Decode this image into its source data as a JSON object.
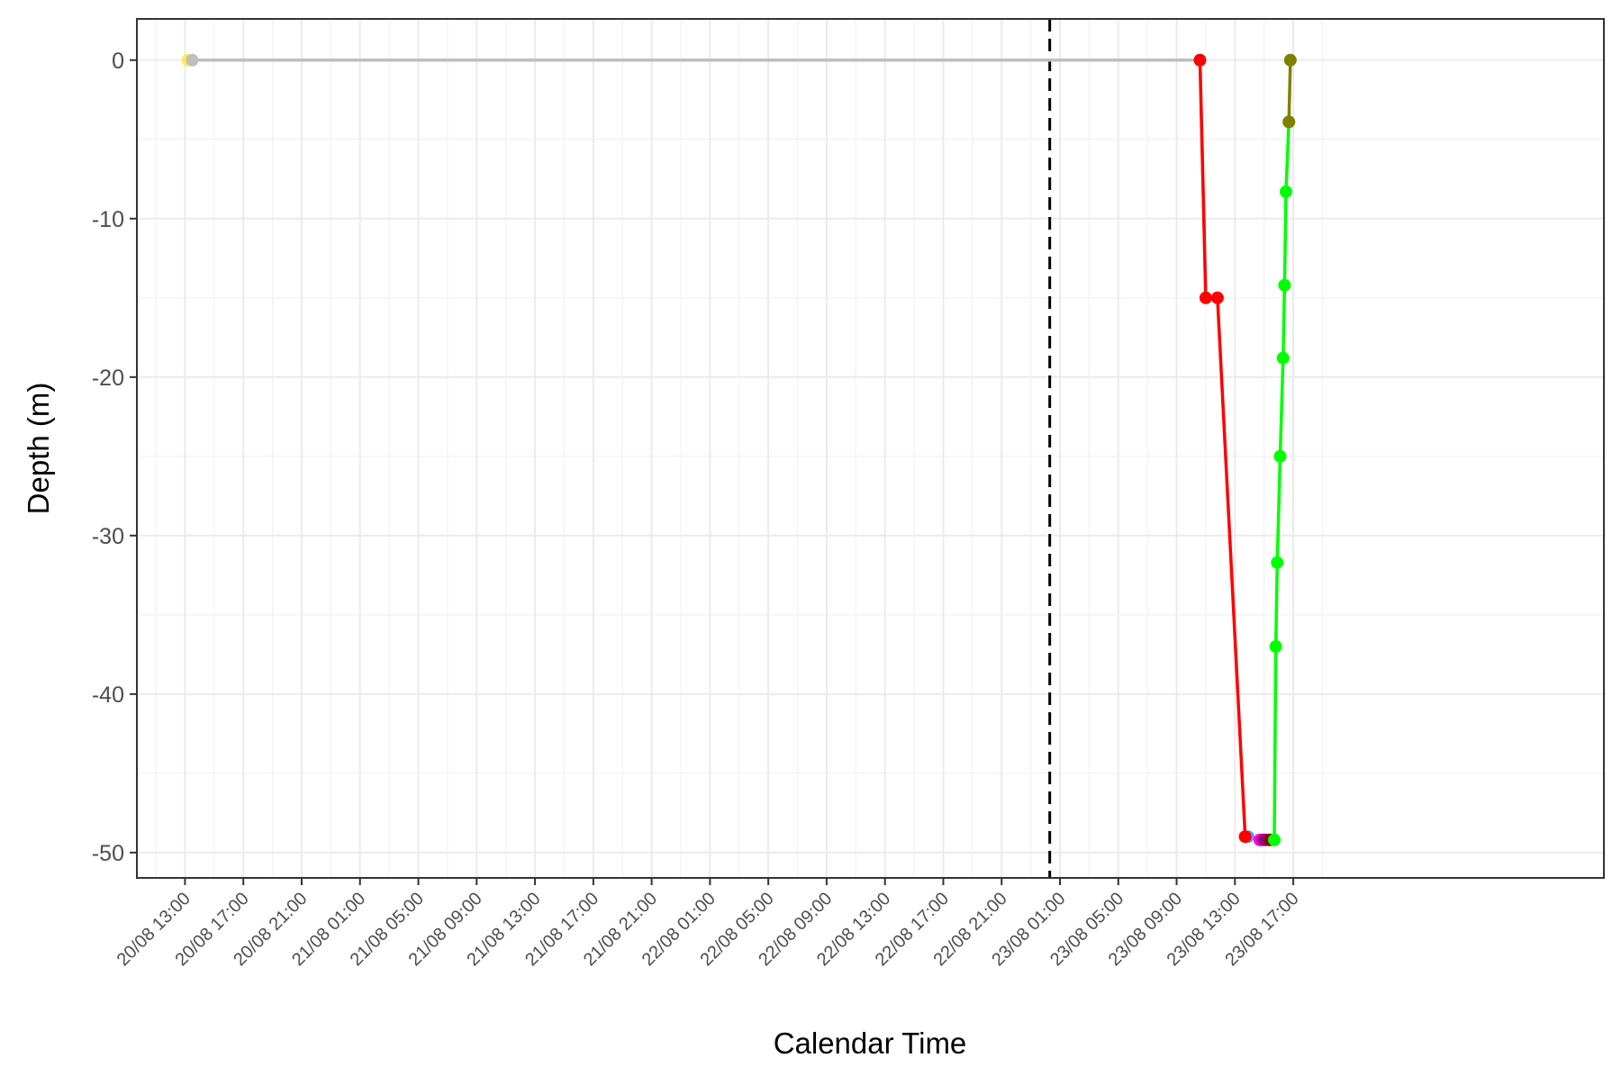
{
  "chart_data": {
    "type": "line",
    "xlabel": "Calendar Time",
    "ylabel": "Depth (m)",
    "x_unit": "hours since 20/08 13:00 (tick labels show dd/mm HH:MM)",
    "xlim": [
      -3.3,
      97.3
    ],
    "ylim": [
      -51.6,
      2.6
    ],
    "x_tick_labels": [
      "20/08 13:00",
      "20/08 17:00",
      "20/08 21:00",
      "21/08 01:00",
      "21/08 05:00",
      "21/08 09:00",
      "21/08 13:00",
      "21/08 17:00",
      "21/08 21:00",
      "22/08 01:00",
      "22/08 05:00",
      "22/08 09:00",
      "22/08 13:00",
      "22/08 17:00",
      "22/08 21:00",
      "23/08 01:00",
      "23/08 05:00",
      "23/08 09:00",
      "23/08 13:00",
      "23/08 17:00"
    ],
    "x_tick_values": [
      0,
      4,
      8,
      12,
      16,
      20,
      24,
      28,
      32,
      36,
      40,
      44,
      48,
      52,
      56,
      60,
      64,
      68,
      72,
      76
    ],
    "y_ticks": [
      0,
      -10,
      -20,
      -30,
      -40,
      -50
    ],
    "grid": true,
    "legend": "none",
    "vline": {
      "x": 59.3,
      "style": "dashed",
      "color": "#000000"
    },
    "series": [
      {
        "color": "#bebebe",
        "points": [
          [
            0.5,
            0
          ],
          [
            69.6,
            0
          ],
          [
            70.0,
            -15
          ]
        ]
      },
      {
        "color": "#ff0000",
        "points": [
          [
            69.6,
            0
          ],
          [
            70.0,
            -15
          ],
          [
            70.8,
            -15
          ],
          [
            72.7,
            -49
          ]
        ]
      },
      {
        "color": "#00ff00",
        "points": [
          [
            74.7,
            -49.2
          ],
          [
            74.8,
            -37
          ],
          [
            74.9,
            -31.7
          ],
          [
            75.1,
            -25
          ],
          [
            75.3,
            -18.8
          ],
          [
            75.4,
            -14.2
          ],
          [
            75.5,
            -8.3
          ],
          [
            75.7,
            -3.9
          ]
        ]
      },
      {
        "color": "#808000",
        "points": [
          [
            75.7,
            -3.9
          ],
          [
            75.8,
            0
          ]
        ]
      }
    ],
    "extra_points": [
      {
        "x": 0.2,
        "y": 0,
        "color": "#ffe94d"
      },
      {
        "x": 72.7,
        "y": -49,
        "color": "#6495ed"
      },
      {
        "x": 72.9,
        "y": -49,
        "color": "#6495ed"
      },
      {
        "x": 73.7,
        "y": -49.2,
        "color": "#ff00ff"
      },
      {
        "x": 73.9,
        "y": -49.2,
        "color": "#cd1076"
      },
      {
        "x": 74.1,
        "y": -49.2,
        "color": "#8b008b"
      },
      {
        "x": 74.4,
        "y": -49.2,
        "color": "#8b0000"
      }
    ]
  }
}
